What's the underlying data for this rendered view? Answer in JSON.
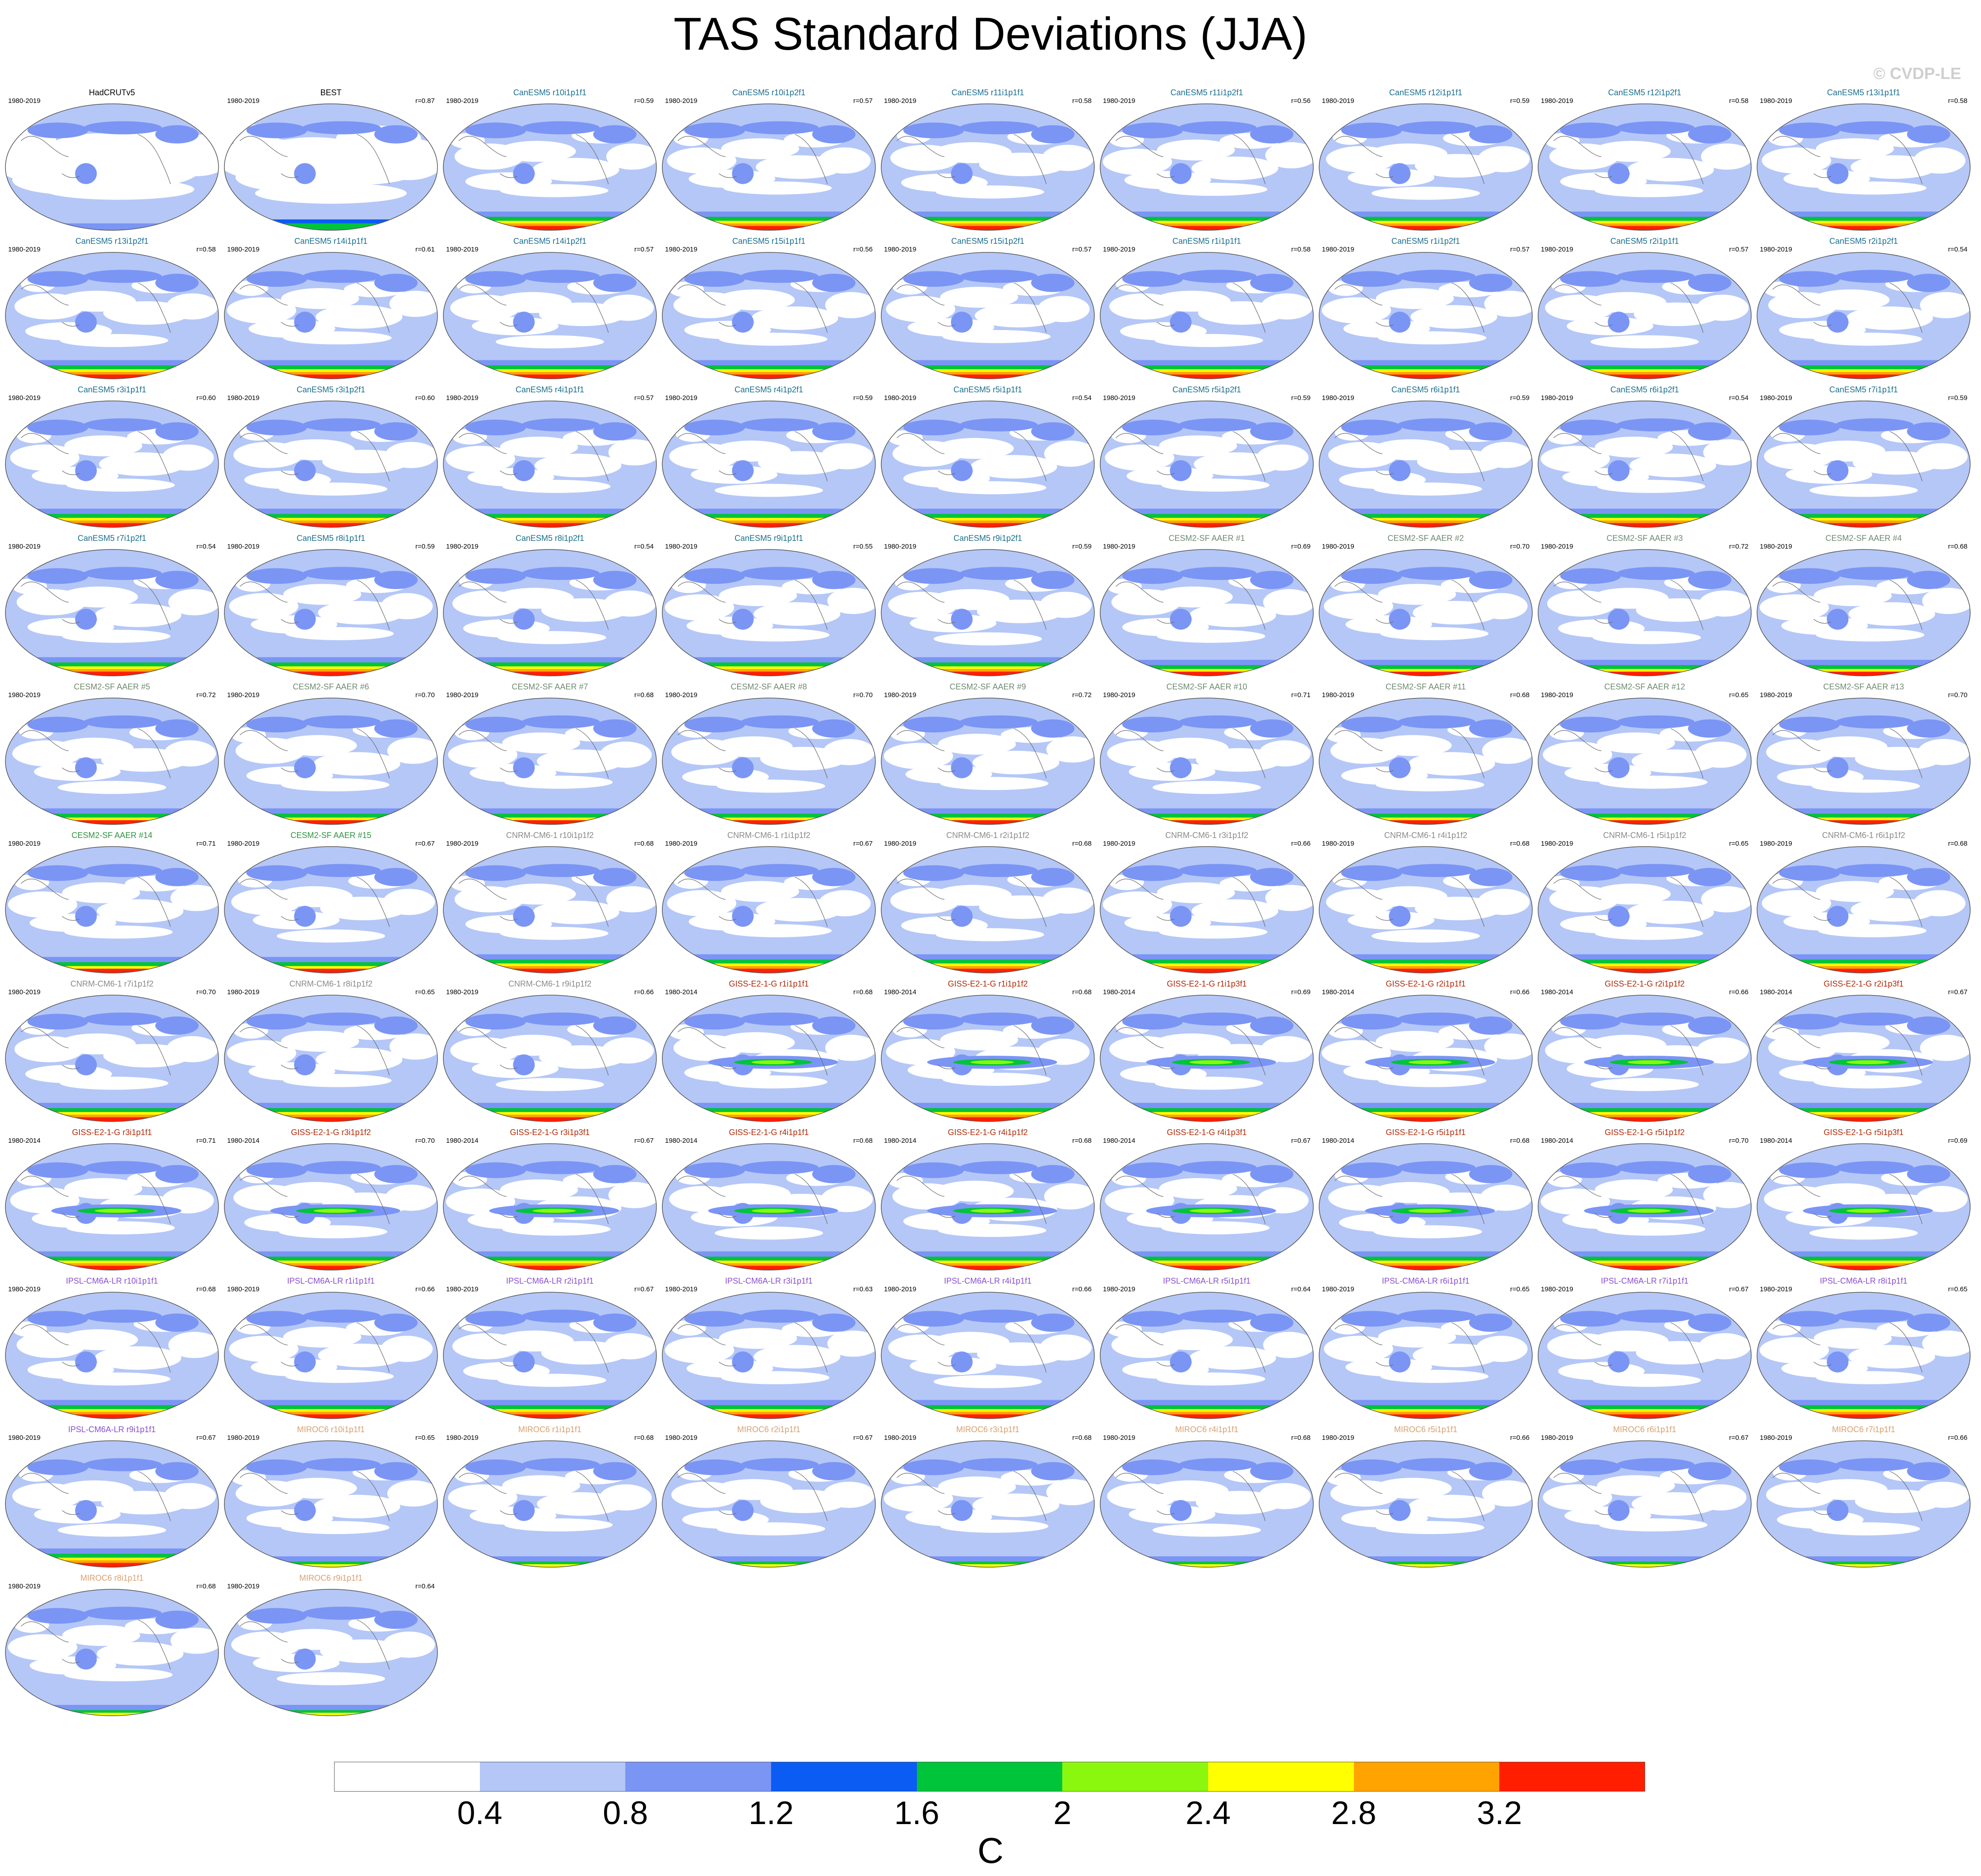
{
  "chart_data": {
    "type": "heatmap",
    "title": "TAS Standard Deviations (JJA)",
    "watermark": "© CVDP-LE",
    "colorbar": {
      "unit": "C",
      "ticks": [
        "0.4",
        "0.8",
        "1.2",
        "1.6",
        "2",
        "2.4",
        "2.8",
        "3.2"
      ],
      "colors": [
        "#ffffff",
        "#b4c7f7",
        "#7b95f5",
        "#0a5cf3",
        "#00c43a",
        "#8bf70e",
        "#ffff00",
        "#ffa300",
        "#ff1f00"
      ]
    },
    "panels": [
      {
        "name": "HadCRUTv5",
        "years": "1980-2019",
        "r": "",
        "name_color": "#000000"
      },
      {
        "name": "BEST",
        "years": "1980-2019",
        "r": "r=0.87",
        "name_color": "#000000"
      },
      {
        "name": "CanESM5 r10i1p1f1",
        "years": "1980-2019",
        "r": "r=0.59",
        "name_color": "#1a6e8e"
      },
      {
        "name": "CanESM5 r10i1p2f1",
        "years": "1980-2019",
        "r": "r=0.57",
        "name_color": "#1a6e8e"
      },
      {
        "name": "CanESM5 r11i1p1f1",
        "years": "1980-2019",
        "r": "r=0.58",
        "name_color": "#1a6e8e"
      },
      {
        "name": "CanESM5 r11i1p2f1",
        "years": "1980-2019",
        "r": "r=0.56",
        "name_color": "#1a6e8e"
      },
      {
        "name": "CanESM5 r12i1p1f1",
        "years": "1980-2019",
        "r": "r=0.59",
        "name_color": "#1a6e8e"
      },
      {
        "name": "CanESM5 r12i1p2f1",
        "years": "1980-2019",
        "r": "r=0.58",
        "name_color": "#1a6e8e"
      },
      {
        "name": "CanESM5 r13i1p1f1",
        "years": "1980-2019",
        "r": "r=0.58",
        "name_color": "#1a6e8e"
      },
      {
        "name": "CanESM5 r13i1p2f1",
        "years": "1980-2019",
        "r": "r=0.58",
        "name_color": "#1a6e8e"
      },
      {
        "name": "CanESM5 r14i1p1f1",
        "years": "1980-2019",
        "r": "r=0.61",
        "name_color": "#1a6e8e"
      },
      {
        "name": "CanESM5 r14i1p2f1",
        "years": "1980-2019",
        "r": "r=0.57",
        "name_color": "#1a6e8e"
      },
      {
        "name": "CanESM5 r15i1p1f1",
        "years": "1980-2019",
        "r": "r=0.56",
        "name_color": "#1a6e8e"
      },
      {
        "name": "CanESM5 r15i1p2f1",
        "years": "1980-2019",
        "r": "r=0.57",
        "name_color": "#1a6e8e"
      },
      {
        "name": "CanESM5 r1i1p1f1",
        "years": "1980-2019",
        "r": "r=0.58",
        "name_color": "#1a6e8e"
      },
      {
        "name": "CanESM5 r1i1p2f1",
        "years": "1980-2019",
        "r": "r=0.57",
        "name_color": "#1a6e8e"
      },
      {
        "name": "CanESM5 r2i1p1f1",
        "years": "1980-2019",
        "r": "r=0.57",
        "name_color": "#1a6e8e"
      },
      {
        "name": "CanESM5 r2i1p2f1",
        "years": "1980-2019",
        "r": "r=0.54",
        "name_color": "#1a6e8e"
      },
      {
        "name": "CanESM5 r3i1p1f1",
        "years": "1980-2019",
        "r": "r=0.60",
        "name_color": "#1a6e8e"
      },
      {
        "name": "CanESM5 r3i1p2f1",
        "years": "1980-2019",
        "r": "r=0.60",
        "name_color": "#1a6e8e"
      },
      {
        "name": "CanESM5 r4i1p1f1",
        "years": "1980-2019",
        "r": "r=0.57",
        "name_color": "#1a6e8e"
      },
      {
        "name": "CanESM5 r4i1p2f1",
        "years": "1980-2019",
        "r": "r=0.59",
        "name_color": "#1a6e8e"
      },
      {
        "name": "CanESM5 r5i1p1f1",
        "years": "1980-2019",
        "r": "r=0.54",
        "name_color": "#1a6e8e"
      },
      {
        "name": "CanESM5 r5i1p2f1",
        "years": "1980-2019",
        "r": "r=0.59",
        "name_color": "#1a6e8e"
      },
      {
        "name": "CanESM5 r6i1p1f1",
        "years": "1980-2019",
        "r": "r=0.59",
        "name_color": "#1a6e8e"
      },
      {
        "name": "CanESM5 r6i1p2f1",
        "years": "1980-2019",
        "r": "r=0.54",
        "name_color": "#1a6e8e"
      },
      {
        "name": "CanESM5 r7i1p1f1",
        "years": "1980-2019",
        "r": "r=0.59",
        "name_color": "#1a6e8e"
      },
      {
        "name": "CanESM5 r7i1p2f1",
        "years": "1980-2019",
        "r": "r=0.54",
        "name_color": "#1a6e8e"
      },
      {
        "name": "CanESM5 r8i1p1f1",
        "years": "1980-2019",
        "r": "r=0.59",
        "name_color": "#1a6e8e"
      },
      {
        "name": "CanESM5 r8i1p2f1",
        "years": "1980-2019",
        "r": "r=0.54",
        "name_color": "#1a6e8e"
      },
      {
        "name": "CanESM5 r9i1p1f1",
        "years": "1980-2019",
        "r": "r=0.55",
        "name_color": "#1a6e8e"
      },
      {
        "name": "CanESM5 r9i1p2f1",
        "years": "1980-2019",
        "r": "r=0.59",
        "name_color": "#1a6e8e"
      },
      {
        "name": "CESM2-SF AAER #1",
        "years": "1980-2019",
        "r": "r=0.69",
        "name_color": "#6f8a72"
      },
      {
        "name": "CESM2-SF AAER #2",
        "years": "1980-2019",
        "r": "r=0.70",
        "name_color": "#6f8a72"
      },
      {
        "name": "CESM2-SF AAER #3",
        "years": "1980-2019",
        "r": "r=0.72",
        "name_color": "#6f8a72"
      },
      {
        "name": "CESM2-SF AAER #4",
        "years": "1980-2019",
        "r": "r=0.68",
        "name_color": "#6f8a72"
      },
      {
        "name": "CESM2-SF AAER #5",
        "years": "1980-2019",
        "r": "r=0.72",
        "name_color": "#6f8a72"
      },
      {
        "name": "CESM2-SF AAER #6",
        "years": "1980-2019",
        "r": "r=0.70",
        "name_color": "#6f8a72"
      },
      {
        "name": "CESM2-SF AAER #7",
        "years": "1980-2019",
        "r": "r=0.68",
        "name_color": "#6f8a72"
      },
      {
        "name": "CESM2-SF AAER #8",
        "years": "1980-2019",
        "r": "r=0.70",
        "name_color": "#6f8a72"
      },
      {
        "name": "CESM2-SF AAER #9",
        "years": "1980-2019",
        "r": "r=0.72",
        "name_color": "#6f8a72"
      },
      {
        "name": "CESM2-SF AAER #10",
        "years": "1980-2019",
        "r": "r=0.71",
        "name_color": "#6f8a72"
      },
      {
        "name": "CESM2-SF AAER #11",
        "years": "1980-2019",
        "r": "r=0.68",
        "name_color": "#6f8a72"
      },
      {
        "name": "CESM2-SF AAER #12",
        "years": "1980-2019",
        "r": "r=0.65",
        "name_color": "#6f8a72"
      },
      {
        "name": "CESM2-SF AAER #13",
        "years": "1980-2019",
        "r": "r=0.70",
        "name_color": "#6f8a72"
      },
      {
        "name": "CESM2-SF AAER #14",
        "years": "1980-2019",
        "r": "r=0.71",
        "name_color": "#2f9440"
      },
      {
        "name": "CESM2-SF AAER #15",
        "years": "1980-2019",
        "r": "r=0.67",
        "name_color": "#2f9440"
      },
      {
        "name": "CNRM-CM6-1 r10i1p1f2",
        "years": "1980-2019",
        "r": "r=0.68",
        "name_color": "#8a8a8a"
      },
      {
        "name": "CNRM-CM6-1 r1i1p1f2",
        "years": "1980-2019",
        "r": "r=0.67",
        "name_color": "#8a8a8a"
      },
      {
        "name": "CNRM-CM6-1 r2i1p1f2",
        "years": "1980-2019",
        "r": "r=0.68",
        "name_color": "#8a8a8a"
      },
      {
        "name": "CNRM-CM6-1 r3i1p1f2",
        "years": "1980-2019",
        "r": "r=0.66",
        "name_color": "#8a8a8a"
      },
      {
        "name": "CNRM-CM6-1 r4i1p1f2",
        "years": "1980-2019",
        "r": "r=0.68",
        "name_color": "#8a8a8a"
      },
      {
        "name": "CNRM-CM6-1 r5i1p1f2",
        "years": "1980-2019",
        "r": "r=0.65",
        "name_color": "#8a8a8a"
      },
      {
        "name": "CNRM-CM6-1 r6i1p1f2",
        "years": "1980-2019",
        "r": "r=0.68",
        "name_color": "#8a8a8a"
      },
      {
        "name": "CNRM-CM6-1 r7i1p1f2",
        "years": "1980-2019",
        "r": "r=0.70",
        "name_color": "#8a8a8a"
      },
      {
        "name": "CNRM-CM6-1 r8i1p1f2",
        "years": "1980-2019",
        "r": "r=0.65",
        "name_color": "#8a8a8a"
      },
      {
        "name": "CNRM-CM6-1 r9i1p1f2",
        "years": "1980-2019",
        "r": "r=0.66",
        "name_color": "#8a8a8a"
      },
      {
        "name": "GISS-E2-1-G r1i1p1f1",
        "years": "1980-2014",
        "r": "r=0.68",
        "name_color": "#b02a0a"
      },
      {
        "name": "GISS-E2-1-G r1i1p1f2",
        "years": "1980-2014",
        "r": "r=0.68",
        "name_color": "#b02a0a"
      },
      {
        "name": "GISS-E2-1-G r1i1p3f1",
        "years": "1980-2014",
        "r": "r=0.69",
        "name_color": "#b02a0a"
      },
      {
        "name": "GISS-E2-1-G r2i1p1f1",
        "years": "1980-2014",
        "r": "r=0.66",
        "name_color": "#b02a0a"
      },
      {
        "name": "GISS-E2-1-G r2i1p1f2",
        "years": "1980-2014",
        "r": "r=0.66",
        "name_color": "#b02a0a"
      },
      {
        "name": "GISS-E2-1-G r2i1p3f1",
        "years": "1980-2014",
        "r": "r=0.67",
        "name_color": "#b02a0a"
      },
      {
        "name": "GISS-E2-1-G r3i1p1f1",
        "years": "1980-2014",
        "r": "r=0.71",
        "name_color": "#b02a0a"
      },
      {
        "name": "GISS-E2-1-G r3i1p1f2",
        "years": "1980-2014",
        "r": "r=0.70",
        "name_color": "#b02a0a"
      },
      {
        "name": "GISS-E2-1-G r3i1p3f1",
        "years": "1980-2014",
        "r": "r=0.67",
        "name_color": "#b02a0a"
      },
      {
        "name": "GISS-E2-1-G r4i1p1f1",
        "years": "1980-2014",
        "r": "r=0.68",
        "name_color": "#b02a0a"
      },
      {
        "name": "GISS-E2-1-G r4i1p1f2",
        "years": "1980-2014",
        "r": "r=0.68",
        "name_color": "#b02a0a"
      },
      {
        "name": "GISS-E2-1-G r4i1p3f1",
        "years": "1980-2014",
        "r": "r=0.67",
        "name_color": "#b02a0a"
      },
      {
        "name": "GISS-E2-1-G r5i1p1f1",
        "years": "1980-2014",
        "r": "r=0.68",
        "name_color": "#b02a0a"
      },
      {
        "name": "GISS-E2-1-G r5i1p1f2",
        "years": "1980-2014",
        "r": "r=0.70",
        "name_color": "#b02a0a"
      },
      {
        "name": "GISS-E2-1-G r5i1p3f1",
        "years": "1980-2014",
        "r": "r=0.69",
        "name_color": "#b02a0a"
      },
      {
        "name": "IPSL-CM6A-LR r10i1p1f1",
        "years": "1980-2019",
        "r": "r=0.68",
        "name_color": "#8a4fd0"
      },
      {
        "name": "IPSL-CM6A-LR r1i1p1f1",
        "years": "1980-2019",
        "r": "r=0.66",
        "name_color": "#8a4fd0"
      },
      {
        "name": "IPSL-CM6A-LR r2i1p1f1",
        "years": "1980-2019",
        "r": "r=0.67",
        "name_color": "#8a4fd0"
      },
      {
        "name": "IPSL-CM6A-LR r3i1p1f1",
        "years": "1980-2019",
        "r": "r=0.63",
        "name_color": "#8a4fd0"
      },
      {
        "name": "IPSL-CM6A-LR r4i1p1f1",
        "years": "1980-2019",
        "r": "r=0.66",
        "name_color": "#8a4fd0"
      },
      {
        "name": "IPSL-CM6A-LR r5i1p1f1",
        "years": "1980-2019",
        "r": "r=0.64",
        "name_color": "#8a4fd0"
      },
      {
        "name": "IPSL-CM6A-LR r6i1p1f1",
        "years": "1980-2019",
        "r": "r=0.65",
        "name_color": "#8a4fd0"
      },
      {
        "name": "IPSL-CM6A-LR r7i1p1f1",
        "years": "1980-2019",
        "r": "r=0.67",
        "name_color": "#8a4fd0"
      },
      {
        "name": "IPSL-CM6A-LR r8i1p1f1",
        "years": "1980-2019",
        "r": "r=0.65",
        "name_color": "#8a4fd0"
      },
      {
        "name": "IPSL-CM6A-LR r9i1p1f1",
        "years": "1980-2019",
        "r": "r=0.67",
        "name_color": "#8a4fd0"
      },
      {
        "name": "MIROC6 r10i1p1f1",
        "years": "1980-2019",
        "r": "r=0.65",
        "name_color": "#d9a070"
      },
      {
        "name": "MIROC6 r1i1p1f1",
        "years": "1980-2019",
        "r": "r=0.68",
        "name_color": "#d9a070"
      },
      {
        "name": "MIROC6 r2i1p1f1",
        "years": "1980-2019",
        "r": "r=0.67",
        "name_color": "#d9a070"
      },
      {
        "name": "MIROC6 r3i1p1f1",
        "years": "1980-2019",
        "r": "r=0.68",
        "name_color": "#d9a070"
      },
      {
        "name": "MIROC6 r4i1p1f1",
        "years": "1980-2019",
        "r": "r=0.68",
        "name_color": "#d9a070"
      },
      {
        "name": "MIROC6 r5i1p1f1",
        "years": "1980-2019",
        "r": "r=0.66",
        "name_color": "#d9a070"
      },
      {
        "name": "MIROC6 r6i1p1f1",
        "years": "1980-2019",
        "r": "r=0.67",
        "name_color": "#d9a070"
      },
      {
        "name": "MIROC6 r7i1p1f1",
        "years": "1980-2019",
        "r": "r=0.66",
        "name_color": "#d9a070"
      },
      {
        "name": "MIROC6 r8i1p1f1",
        "years": "1980-2019",
        "r": "r=0.68",
        "name_color": "#d9a070"
      },
      {
        "name": "MIROC6 r9i1p1f1",
        "years": "1980-2019",
        "r": "r=0.64",
        "name_color": "#d9a070"
      }
    ]
  }
}
